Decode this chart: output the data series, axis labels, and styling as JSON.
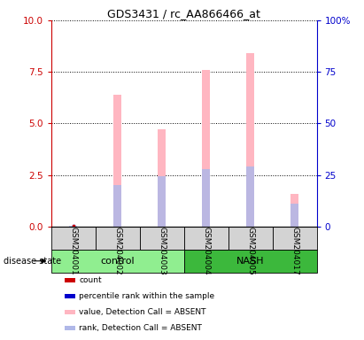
{
  "title": "GDS3431 / rc_AA866466_at",
  "samples": [
    "GSM204001",
    "GSM204002",
    "GSM204003",
    "GSM204004",
    "GSM204005",
    "GSM204017"
  ],
  "groups": [
    "control",
    "control",
    "control",
    "NASH",
    "NASH",
    "NASH"
  ],
  "value_ABSENT": [
    0.0,
    6.4,
    4.7,
    7.6,
    8.4,
    1.6
  ],
  "rank_ABSENT": [
    0.05,
    2.0,
    2.45,
    2.8,
    2.9,
    1.1
  ],
  "bar_width": 0.18,
  "ylim_left": [
    0,
    10
  ],
  "ylim_right": [
    0,
    100
  ],
  "yticks_left": [
    0,
    2.5,
    5.0,
    7.5,
    10
  ],
  "yticks_right": [
    0,
    25,
    50,
    75,
    100
  ],
  "color_value_absent": "#ffb6c1",
  "color_rank_absent": "#b0b8e8",
  "color_count": "#cc0000",
  "color_percentile": "#0000cc",
  "tick_color_left": "#cc0000",
  "tick_color_right": "#0000cc",
  "background_color": "#ffffff",
  "sample_box_color": "#d3d3d3",
  "control_color": "#90ee90",
  "nash_color": "#3cb83c",
  "legend_items": [
    {
      "label": "count",
      "color": "#cc0000"
    },
    {
      "label": "percentile rank within the sample",
      "color": "#0000cc"
    },
    {
      "label": "value, Detection Call = ABSENT",
      "color": "#ffb6c1"
    },
    {
      "label": "rank, Detection Call = ABSENT",
      "color": "#b0b8e8"
    }
  ],
  "disease_state_label": "disease state"
}
